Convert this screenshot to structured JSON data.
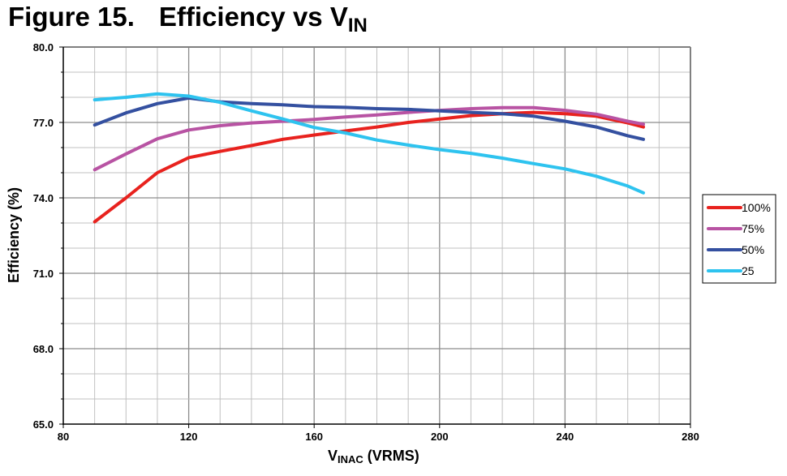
{
  "figure": {
    "title_prefix": "Figure 15.",
    "title_main": "Efficiency vs V",
    "title_sub": "IN"
  },
  "chart_data": {
    "type": "line",
    "title": "Figure 15. Efficiency vs VIN",
    "xlabel_main": "V",
    "xlabel_sub": "INAC",
    "xlabel_tail": " (VRMS)",
    "ylabel": "Efficiency (%)",
    "xlim": [
      80,
      280
    ],
    "ylim": [
      65.0,
      80.0
    ],
    "x_ticks": [
      "80",
      "120",
      "160",
      "200",
      "240",
      "280"
    ],
    "y_ticks": [
      "65.0",
      "68.0",
      "71.0",
      "74.0",
      "77.0",
      "80.0"
    ],
    "grid": true,
    "legend_position": "right",
    "x": [
      90,
      100,
      110,
      120,
      130,
      140,
      150,
      160,
      170,
      180,
      190,
      200,
      210,
      220,
      230,
      240,
      250,
      260,
      265
    ],
    "series": [
      {
        "name": "100%",
        "color": "#e8221e",
        "values": [
          73.05,
          74.0,
          75.0,
          75.6,
          75.85,
          76.08,
          76.33,
          76.5,
          76.66,
          76.82,
          77.0,
          77.14,
          77.27,
          77.35,
          77.4,
          77.35,
          77.25,
          76.98,
          76.82
        ]
      },
      {
        "name": "75%",
        "color": "#b853a3",
        "values": [
          75.12,
          75.75,
          76.35,
          76.7,
          76.87,
          76.98,
          77.05,
          77.12,
          77.22,
          77.3,
          77.4,
          77.48,
          77.55,
          77.59,
          77.59,
          77.48,
          77.33,
          77.05,
          76.93
        ]
      },
      {
        "name": "50%",
        "color": "#3450a0",
        "values": [
          76.9,
          77.38,
          77.75,
          77.97,
          77.82,
          77.75,
          77.7,
          77.63,
          77.6,
          77.55,
          77.52,
          77.46,
          77.4,
          77.35,
          77.25,
          77.05,
          76.82,
          76.47,
          76.33
        ]
      },
      {
        "name": "25",
        "color": "#2ec3ef",
        "values": [
          77.9,
          78.0,
          78.14,
          78.05,
          77.8,
          77.46,
          77.14,
          76.8,
          76.58,
          76.3,
          76.1,
          75.92,
          75.77,
          75.58,
          75.36,
          75.15,
          74.86,
          74.47,
          74.2
        ]
      }
    ]
  }
}
